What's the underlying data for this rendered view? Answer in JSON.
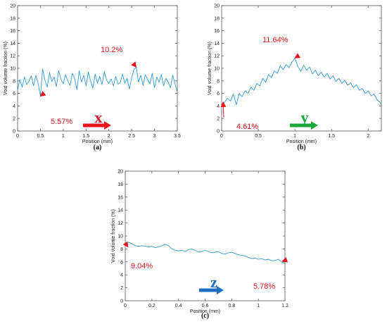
{
  "chart_data": [
    {
      "type": "line",
      "panel_label": "(a)",
      "xlabel": "Position (mm)",
      "ylabel": "Void volume fraction (%)",
      "xlim": [
        0,
        3.5
      ],
      "ylim": [
        0,
        20
      ],
      "xticks": [
        "0",
        "0.5",
        "1",
        "1.5",
        "2",
        "2.5",
        "3",
        "3.5"
      ],
      "yticks": [
        "0",
        "2",
        "4",
        "6",
        "8",
        "10",
        "12",
        "14",
        "16",
        "18",
        "20"
      ],
      "line_color": "#2e9bd6",
      "direction": {
        "label": "x",
        "color": "#e8161c"
      },
      "annotations": [
        {
          "text": "5.57%",
          "point": [
            0.5,
            5.57
          ],
          "color": "#e8161c"
        },
        {
          "text": "10.2%",
          "point": [
            2.6,
            10.2
          ],
          "color": "#e8161c"
        }
      ],
      "series": [
        {
          "x": [
            0,
            0.05,
            0.1,
            0.15,
            0.2,
            0.25,
            0.3,
            0.35,
            0.4,
            0.45,
            0.5,
            0.55,
            0.6,
            0.65,
            0.7,
            0.75,
            0.8,
            0.85,
            0.9,
            0.95,
            1.0,
            1.05,
            1.1,
            1.15,
            1.2,
            1.25,
            1.3,
            1.35,
            1.4,
            1.45,
            1.5,
            1.55,
            1.6,
            1.65,
            1.7,
            1.75,
            1.8,
            1.85,
            1.9,
            1.95,
            2.0,
            2.05,
            2.1,
            2.15,
            2.2,
            2.25,
            2.3,
            2.35,
            2.4,
            2.45,
            2.5,
            2.55,
            2.6,
            2.65,
            2.7,
            2.75,
            2.8,
            2.85,
            2.9,
            2.95,
            3.0,
            3.05,
            3.1,
            3.15,
            3.2,
            3.25,
            3.3,
            3.35,
            3.4,
            3.45,
            3.5
          ],
          "y": [
            6.5,
            8.2,
            7.0,
            8.6,
            7.4,
            8.0,
            8.8,
            7.2,
            8.9,
            7.6,
            5.57,
            9.9,
            8.1,
            7.0,
            9.3,
            7.9,
            8.6,
            7.1,
            9.6,
            8.3,
            7.5,
            9.0,
            8.0,
            7.3,
            9.2,
            8.4,
            6.6,
            9.6,
            7.8,
            8.9,
            7.2,
            9.4,
            8.0,
            6.8,
            9.1,
            7.6,
            8.7,
            7.4,
            9.5,
            8.1,
            7.6,
            8.3,
            7.2,
            8.7,
            7.5,
            7.7,
            9.1,
            7.6,
            8.4,
            6.7,
            8.5,
            9.8,
            10.2,
            7.8,
            8.9,
            7.3,
            9.0,
            8.2,
            7.5,
            9.2,
            6.9,
            8.6,
            7.8,
            9.0,
            7.2,
            8.4,
            7.8,
            6.9,
            8.9,
            7.5,
            6.2
          ]
        }
      ]
    },
    {
      "type": "line",
      "panel_label": "(b)",
      "xlabel": "Position (mm)",
      "ylabel": "Void volume fraction (%)",
      "xlim": [
        0,
        2.18
      ],
      "ylim": [
        0,
        20
      ],
      "xticks": [
        "0",
        "0.5",
        "1",
        "1.5",
        "2"
      ],
      "yticks": [
        "0",
        "2",
        "4",
        "6",
        "8",
        "10",
        "12",
        "14",
        "16",
        "18",
        "20"
      ],
      "line_color": "#2e9bd6",
      "direction": {
        "label": "y",
        "color": "#1aa838"
      },
      "annotations": [
        {
          "text": "11.64%",
          "point": [
            1.0,
            11.64
          ],
          "color": "#e8161c"
        },
        {
          "text": "4.61%",
          "point": [
            0.02,
            4.61
          ],
          "color": "#e8161c"
        }
      ],
      "series": [
        {
          "x": [
            0,
            0.04,
            0.08,
            0.12,
            0.16,
            0.2,
            0.24,
            0.28,
            0.32,
            0.36,
            0.4,
            0.44,
            0.48,
            0.52,
            0.56,
            0.6,
            0.64,
            0.68,
            0.72,
            0.76,
            0.8,
            0.84,
            0.88,
            0.92,
            0.96,
            1.0,
            1.04,
            1.08,
            1.12,
            1.16,
            1.2,
            1.24,
            1.28,
            1.32,
            1.36,
            1.4,
            1.44,
            1.48,
            1.52,
            1.56,
            1.6,
            1.64,
            1.68,
            1.72,
            1.76,
            1.8,
            1.84,
            1.88,
            1.92,
            1.96,
            2.0,
            2.04,
            2.08,
            2.12,
            2.16,
            2.18
          ],
          "y": [
            4.0,
            4.61,
            5.2,
            4.8,
            5.9,
            4.2,
            6.0,
            5.5,
            6.4,
            6.0,
            7.0,
            6.5,
            7.6,
            7.2,
            8.4,
            7.8,
            9.0,
            8.5,
            9.6,
            9.2,
            10.4,
            9.8,
            10.6,
            10.1,
            11.0,
            11.64,
            10.3,
            9.5,
            10.5,
            9.7,
            10.2,
            9.1,
            9.7,
            8.8,
            9.4,
            8.6,
            9.2,
            8.3,
            8.8,
            7.9,
            8.4,
            7.6,
            8.1,
            7.3,
            7.7,
            6.9,
            7.4,
            6.5,
            6.8,
            6.0,
            6.4,
            5.6,
            5.9,
            5.0,
            4.6,
            4.2
          ]
        }
      ]
    },
    {
      "type": "line",
      "panel_label": "(c)",
      "xlabel": "Position (mm)",
      "ylabel": "Void volume fraction (%)",
      "xlim": [
        0,
        1.2
      ],
      "ylim": [
        0,
        20
      ],
      "xticks": [
        "0",
        "0.2",
        "0.4",
        "0.6",
        "0.8",
        "1",
        "1.2"
      ],
      "yticks": [
        "0",
        "2",
        "4",
        "6",
        "8",
        "10",
        "12",
        "14",
        "16",
        "18",
        "20"
      ],
      "line_color": "#2e9bd6",
      "direction": {
        "label": "z",
        "color": "#1f6fc0"
      },
      "annotations": [
        {
          "text": "9.04%",
          "point": [
            0.02,
            8.3
          ],
          "color": "#e8161c"
        },
        {
          "text": "5.78%",
          "point": [
            1.18,
            6.1
          ],
          "color": "#e8161c"
        }
      ],
      "series": [
        {
          "x": [
            0,
            0.025,
            0.05,
            0.075,
            0.1,
            0.125,
            0.15,
            0.175,
            0.2,
            0.225,
            0.25,
            0.275,
            0.3,
            0.325,
            0.35,
            0.375,
            0.4,
            0.425,
            0.45,
            0.475,
            0.5,
            0.525,
            0.55,
            0.575,
            0.6,
            0.625,
            0.65,
            0.675,
            0.7,
            0.725,
            0.75,
            0.775,
            0.8,
            0.825,
            0.85,
            0.875,
            0.9,
            0.925,
            0.95,
            0.975,
            1.0,
            1.025,
            1.05,
            1.075,
            1.1,
            1.125,
            1.15,
            1.175,
            1.2
          ],
          "y": [
            8.7,
            9.04,
            8.8,
            8.5,
            8.4,
            8.5,
            8.4,
            8.3,
            8.4,
            8.2,
            8.3,
            8.5,
            8.7,
            8.5,
            8.0,
            7.8,
            7.7,
            7.8,
            7.6,
            7.9,
            8.0,
            7.8,
            7.5,
            7.6,
            7.8,
            7.6,
            7.4,
            7.5,
            7.6,
            7.3,
            7.2,
            7.4,
            7.5,
            7.3,
            7.1,
            7.0,
            6.9,
            6.7,
            6.5,
            6.6,
            6.4,
            6.5,
            6.3,
            6.4,
            6.2,
            6.2,
            6.4,
            6.0,
            5.78
          ]
        }
      ]
    }
  ]
}
